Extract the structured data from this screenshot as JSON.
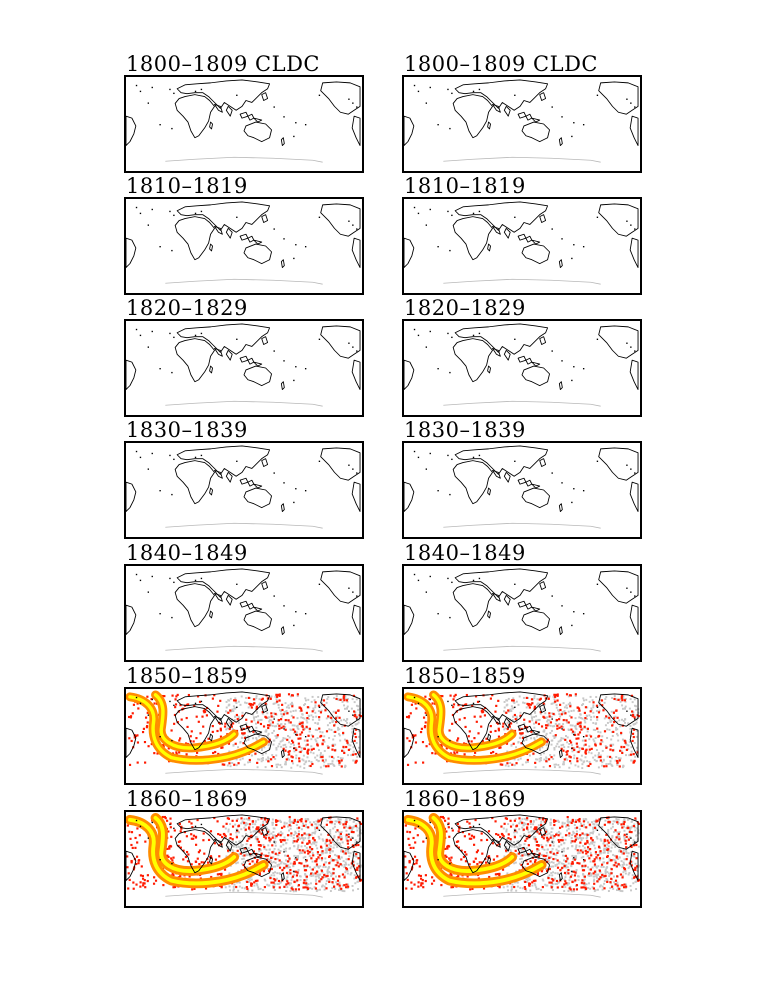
{
  "figure": {
    "columns": [
      "left",
      "right"
    ],
    "panels": [
      {
        "label": "1800–1809 CLDC",
        "density": 0
      },
      {
        "label": "1810–1819",
        "density": 0
      },
      {
        "label": "1820–1829",
        "density": 0
      },
      {
        "label": "1830–1839",
        "density": 0
      },
      {
        "label": "1840–1849",
        "density": 0
      },
      {
        "label": "1850–1859",
        "density": 2
      },
      {
        "label": "1860–1869",
        "density": 3
      }
    ]
  },
  "legend_colors": {
    "low": "#c8c8c8",
    "medium": "#ff1a00",
    "high": "#ff8c00",
    "highest": "#ffff00"
  }
}
